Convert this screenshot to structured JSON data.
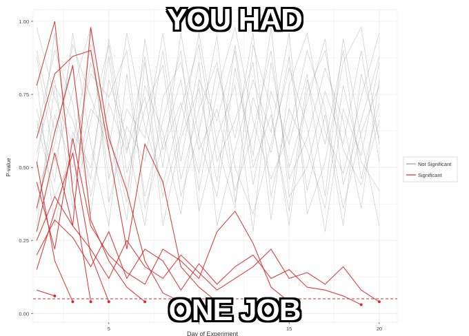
{
  "meme": {
    "top_text": "YOU HAD",
    "bottom_text": "ONE JOB"
  },
  "colors": {
    "significant": "#d62b2b",
    "not_significant": "#9a9a9a",
    "threshold": "#d62b2b",
    "panel": "#ffffff",
    "grid": "#ececec"
  },
  "chart_data": {
    "type": "line",
    "title": "",
    "xlabel": "Day of Experiment",
    "ylabel": "P-value",
    "xlim": [
      0.8,
      21
    ],
    "ylim": [
      -0.03,
      1.04
    ],
    "xticks": [
      5,
      10,
      15,
      20
    ],
    "yticks": [
      0.0,
      0.25,
      0.5,
      0.75,
      1.0
    ],
    "ytick_labels": [
      "0.00",
      "0.25",
      "0.50",
      "0.75",
      "1.00"
    ],
    "xtick_labels": [
      "5",
      "",
      "15",
      "20"
    ],
    "grid": true,
    "threshold": 0.05,
    "legend": {
      "placement": "right",
      "entries": [
        "Not Significant",
        "Significant"
      ]
    },
    "series": [
      {
        "group": "Significant",
        "x": [
          1,
          2,
          3,
          4
        ],
        "y": [
          0.78,
          1.0,
          0.42,
          0.04
        ]
      },
      {
        "group": "Significant",
        "x": [
          1,
          2,
          3
        ],
        "y": [
          0.52,
          0.18,
          0.04
        ]
      },
      {
        "group": "Significant",
        "x": [
          1,
          2,
          3,
          4,
          5
        ],
        "y": [
          0.15,
          0.35,
          0.55,
          0.2,
          0.04
        ]
      },
      {
        "group": "Significant",
        "x": [
          1,
          2,
          3,
          4,
          5,
          6,
          7
        ],
        "y": [
          0.36,
          0.62,
          0.85,
          0.32,
          0.18,
          0.09,
          0.04
        ]
      },
      {
        "group": "Significant",
        "x": [
          1,
          2,
          3,
          4,
          5,
          6,
          7,
          8,
          9
        ],
        "y": [
          0.28,
          0.55,
          0.3,
          0.98,
          0.6,
          0.42,
          0.18,
          0.07,
          0.04
        ]
      },
      {
        "group": "Significant",
        "x": [
          1,
          2,
          3,
          4,
          5,
          6,
          7,
          8,
          9,
          10,
          11
        ],
        "y": [
          0.6,
          0.82,
          0.88,
          0.9,
          0.56,
          0.22,
          0.58,
          0.45,
          0.16,
          0.09,
          0.04
        ]
      },
      {
        "group": "Significant",
        "x": [
          1,
          2,
          3,
          4,
          5,
          6,
          7,
          8,
          9,
          10,
          11,
          12,
          13,
          14,
          15
        ],
        "y": [
          0.45,
          0.22,
          0.6,
          0.3,
          0.2,
          0.14,
          0.1,
          0.22,
          0.18,
          0.12,
          0.28,
          0.35,
          0.24,
          0.09,
          0.04
        ]
      },
      {
        "group": "Significant",
        "x": [
          1,
          2,
          3,
          4,
          5,
          6,
          7,
          8,
          9,
          10,
          11,
          12,
          13,
          14,
          15,
          16,
          17,
          18,
          19
        ],
        "y": [
          0.2,
          0.32,
          0.26,
          0.16,
          0.28,
          0.12,
          0.22,
          0.18,
          0.08,
          0.17,
          0.1,
          0.16,
          0.2,
          0.12,
          0.15,
          0.09,
          0.08,
          0.06,
          0.03
        ]
      },
      {
        "group": "Significant",
        "x": [
          1,
          2,
          3,
          4,
          5,
          6,
          7,
          8,
          9,
          10,
          11,
          12,
          13,
          14,
          15,
          16,
          17,
          18,
          19,
          20
        ],
        "y": [
          0.25,
          0.4,
          0.3,
          0.22,
          0.12,
          0.25,
          0.16,
          0.12,
          0.2,
          0.14,
          0.08,
          0.12,
          0.16,
          0.22,
          0.12,
          0.14,
          0.1,
          0.16,
          0.08,
          0.04
        ]
      },
      {
        "group": "Significant",
        "x": [
          1,
          2
        ],
        "y": [
          0.08,
          0.06
        ]
      },
      {
        "group": "Not Significant",
        "x": [
          1,
          2,
          3,
          4,
          5,
          6,
          7,
          8,
          9,
          10,
          11,
          12,
          13,
          14,
          15,
          16,
          17,
          18,
          19,
          20
        ],
        "y": [
          0.9,
          0.62,
          0.84,
          0.4,
          0.72,
          0.55,
          0.88,
          0.3,
          0.6,
          0.77,
          0.45,
          0.92,
          0.5,
          0.68,
          0.35,
          0.8,
          0.58,
          0.9,
          0.46,
          0.72
        ]
      },
      {
        "group": "Not Significant",
        "x": [
          1,
          2,
          3,
          4,
          5,
          6,
          7,
          8,
          9,
          10,
          11,
          12,
          13,
          14,
          15,
          16,
          17,
          18,
          19,
          20
        ],
        "y": [
          0.55,
          0.8,
          0.36,
          0.66,
          0.92,
          0.48,
          0.7,
          0.85,
          0.4,
          0.62,
          0.95,
          0.38,
          0.74,
          0.55,
          0.88,
          0.42,
          0.68,
          0.3,
          0.82,
          0.6
        ]
      },
      {
        "group": "Not Significant",
        "x": [
          1,
          2,
          3,
          4,
          5,
          6,
          7,
          8,
          9,
          10,
          11,
          12,
          13,
          14,
          15,
          16,
          17,
          18,
          19,
          20
        ],
        "y": [
          0.7,
          0.45,
          0.96,
          0.58,
          0.3,
          0.82,
          0.4,
          0.66,
          0.9,
          0.35,
          0.6,
          0.78,
          0.28,
          0.86,
          0.5,
          0.72,
          0.94,
          0.44,
          0.66,
          0.88
        ]
      },
      {
        "group": "Not Significant",
        "x": [
          1,
          2,
          3,
          4,
          5,
          6,
          7,
          8,
          9,
          10,
          11,
          12,
          13,
          14,
          15,
          16,
          17,
          18,
          19,
          20
        ],
        "y": [
          0.35,
          0.68,
          0.5,
          0.86,
          0.62,
          0.38,
          0.94,
          0.56,
          0.72,
          0.48,
          0.84,
          0.6,
          0.96,
          0.4,
          0.7,
          0.56,
          0.36,
          0.78,
          0.52,
          0.42
        ]
      },
      {
        "group": "Not Significant",
        "x": [
          1,
          2,
          3,
          4,
          5,
          6,
          7,
          8,
          9,
          10,
          11,
          12,
          13,
          14,
          15,
          16,
          17,
          18,
          19,
          20
        ],
        "y": [
          0.98,
          0.74,
          0.58,
          0.92,
          0.46,
          0.7,
          0.6,
          0.96,
          0.52,
          0.86,
          0.3,
          0.56,
          0.8,
          0.62,
          0.96,
          0.34,
          0.52,
          0.86,
          0.98,
          0.58
        ]
      },
      {
        "group": "Not Significant",
        "x": [
          1,
          2,
          3,
          4,
          5,
          6,
          7,
          8,
          9,
          10,
          11,
          12,
          13,
          14,
          15,
          16,
          17,
          18,
          19,
          20
        ],
        "y": [
          0.62,
          0.9,
          0.72,
          0.34,
          0.8,
          0.6,
          0.3,
          0.74,
          0.86,
          0.56,
          0.7,
          0.42,
          0.62,
          0.9,
          0.46,
          0.6,
          0.84,
          0.66,
          0.36,
          0.8
        ]
      },
      {
        "group": "Not Significant",
        "x": [
          1,
          2,
          3,
          4,
          5,
          6,
          7,
          8,
          9,
          10,
          11,
          12,
          13,
          14,
          15,
          16,
          17,
          18,
          19,
          20
        ],
        "y": [
          0.42,
          0.58,
          0.92,
          0.74,
          0.56,
          0.96,
          0.64,
          0.44,
          0.7,
          0.92,
          0.52,
          0.66,
          0.86,
          0.32,
          0.78,
          0.96,
          0.62,
          0.48,
          0.74,
          0.96
        ]
      },
      {
        "group": "Not Significant",
        "x": [
          1,
          2,
          3,
          4,
          5,
          6,
          7,
          8,
          9,
          10,
          11,
          12,
          13,
          14,
          15,
          16,
          17,
          18,
          19,
          20
        ],
        "y": [
          0.8,
          0.3,
          0.62,
          0.5,
          0.88,
          0.42,
          0.78,
          0.62,
          0.34,
          0.8,
          0.66,
          0.9,
          0.44,
          0.76,
          0.58,
          0.82,
          0.4,
          0.94,
          0.6,
          0.3
        ]
      },
      {
        "group": "Not Significant",
        "x": [
          1,
          2,
          3,
          4,
          5,
          6,
          7,
          8,
          9,
          10,
          11,
          12,
          13,
          14,
          15,
          16,
          17,
          18,
          19,
          20
        ],
        "y": [
          0.5,
          0.96,
          0.44,
          0.7,
          0.62,
          0.32,
          0.86,
          0.5,
          0.96,
          0.6,
          0.4,
          0.84,
          0.54,
          0.98,
          0.4,
          0.5,
          0.76,
          0.58,
          0.9,
          0.52
        ]
      },
      {
        "group": "Not Significant",
        "x": [
          1,
          2,
          3,
          4,
          5,
          6,
          7,
          8,
          9,
          10,
          11,
          12,
          13,
          14,
          15,
          16,
          17,
          18,
          19,
          20
        ],
        "y": [
          0.88,
          0.52,
          0.76,
          0.98,
          0.38,
          0.64,
          0.52,
          0.9,
          0.46,
          0.7,
          0.86,
          0.5,
          0.34,
          0.58,
          0.84,
          0.64,
          0.28,
          0.7,
          0.54,
          0.86
        ]
      },
      {
        "group": "Not Significant",
        "x": [
          1,
          2,
          3,
          4,
          5,
          6,
          7,
          8,
          9,
          10,
          11,
          12,
          13,
          14,
          15,
          16,
          17,
          18,
          19,
          20
        ],
        "y": [
          0.66,
          0.4,
          0.54,
          0.82,
          0.74,
          0.9,
          0.36,
          0.58,
          0.8,
          0.42,
          0.76,
          0.98,
          0.66,
          0.46,
          0.62,
          0.9,
          0.7,
          0.36,
          0.62,
          0.78
        ]
      },
      {
        "group": "Not Significant",
        "x": [
          1,
          2,
          3,
          4,
          5,
          6,
          7,
          8,
          9,
          10,
          11,
          12,
          13,
          14,
          15,
          16,
          17,
          18,
          19,
          20
        ],
        "y": [
          0.3,
          0.78,
          0.66,
          0.46,
          0.94,
          0.56,
          0.74,
          0.4,
          0.62,
          0.96,
          0.58,
          0.36,
          0.92,
          0.7,
          0.3,
          0.76,
          0.9,
          0.56,
          0.44,
          0.66
        ]
      }
    ]
  }
}
